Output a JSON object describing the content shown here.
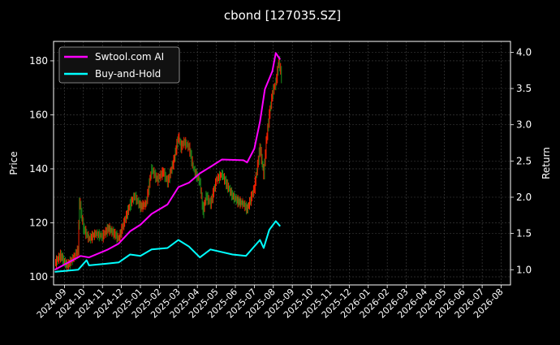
{
  "chart_data": {
    "type": "line",
    "title": "cbond [127035.SZ]",
    "ylabel_left": "Price",
    "ylabel_right": "Return",
    "xlim": [
      "2024-08-14",
      "2026-08-16"
    ],
    "ylim_left": [
      97,
      187.2
    ],
    "ylim_right": [
      0.79,
      4.15
    ],
    "grid": true,
    "legend_position": "top-left",
    "x_tick_labels": [
      "2024-09",
      "2024-10",
      "2024-11",
      "2024-12",
      "2025-01",
      "2025-02",
      "2025-03",
      "2025-04",
      "2025-05",
      "2025-06",
      "2025-07",
      "2025-08",
      "2025-09",
      "2025-10",
      "2025-11",
      "2025-12",
      "2026-01",
      "2026-02",
      "2026-03",
      "2026-04",
      "2026-05",
      "2026-06",
      "2026-07",
      "2026-08"
    ],
    "y_left_ticks": [
      100,
      120,
      140,
      160,
      180
    ],
    "y_right_ticks": [
      "1.0",
      "1.5",
      "2.0",
      "2.5",
      "3.0",
      "3.5",
      "4.0"
    ],
    "colors": {
      "up": "#ff2200",
      "down": "#1a8a1a",
      "strategy": "#ff00ff",
      "buy_hold": "#00ffff",
      "grid": "#555555"
    },
    "price": {
      "dates": [
        "2024-08-16",
        "2024-08-25",
        "2024-09-05",
        "2024-09-15",
        "2024-09-23",
        "2024-09-25",
        "2024-10-01",
        "2024-10-10",
        "2024-10-20",
        "2024-11-01",
        "2024-11-10",
        "2024-11-20",
        "2024-11-27",
        "2024-12-05",
        "2024-12-15",
        "2024-12-22",
        "2025-01-01",
        "2025-01-10",
        "2025-01-19",
        "2025-01-28",
        "2025-02-07",
        "2025-02-14",
        "2025-02-24",
        "2025-03-01",
        "2025-03-05",
        "2025-03-10",
        "2025-03-18",
        "2025-03-25",
        "2025-04-05",
        "2025-04-10",
        "2025-04-15",
        "2025-04-22",
        "2025-05-01",
        "2025-05-10",
        "2025-05-18",
        "2025-05-27",
        "2025-06-05",
        "2025-06-14",
        "2025-06-20",
        "2025-07-01",
        "2025-07-10",
        "2025-07-16",
        "2025-07-20",
        "2025-07-25",
        "2025-07-30",
        "2025-08-05",
        "2025-08-10",
        "2025-08-14"
      ],
      "close": [
        105,
        108,
        104,
        107,
        110,
        128,
        118,
        114,
        116,
        115,
        118,
        116,
        114,
        120,
        127,
        130,
        126,
        127,
        140,
        136,
        139,
        135,
        143,
        152,
        148,
        150,
        148,
        140,
        135,
        124,
        130,
        127,
        136,
        138,
        134,
        130,
        128,
        127,
        125,
        133,
        148,
        138,
        150,
        160,
        168,
        172,
        180,
        174
      ]
    },
    "series": [
      {
        "name": "Swtool.com AI",
        "axis": "right",
        "dates": [
          "2024-08-16",
          "2024-09-27",
          "2024-10-10",
          "2024-11-10",
          "2024-11-27",
          "2024-12-15",
          "2025-01-01",
          "2025-01-19",
          "2025-02-14",
          "2025-03-01",
          "2025-03-18",
          "2025-04-05",
          "2025-04-22",
          "2025-05-10",
          "2025-06-14",
          "2025-06-20",
          "2025-07-01",
          "2025-07-10",
          "2025-07-18",
          "2025-07-30",
          "2025-08-05",
          "2025-08-12"
        ],
        "values": [
          1.0,
          1.19,
          1.17,
          1.28,
          1.36,
          1.53,
          1.62,
          1.77,
          1.9,
          2.14,
          2.2,
          2.33,
          2.42,
          2.52,
          2.51,
          2.48,
          2.67,
          3.04,
          3.49,
          3.74,
          3.99,
          3.9
        ]
      },
      {
        "name": "Buy-and-Hold",
        "axis": "right",
        "dates": [
          "2024-08-16",
          "2024-09-23",
          "2024-10-06",
          "2024-10-10",
          "2024-11-27",
          "2024-12-15",
          "2025-01-01",
          "2025-01-19",
          "2025-02-14",
          "2025-03-01",
          "2025-03-18",
          "2025-04-05",
          "2025-04-22",
          "2025-05-27",
          "2025-06-18",
          "2025-07-10",
          "2025-07-16",
          "2025-07-25",
          "2025-08-05",
          "2025-08-12"
        ],
        "values": [
          0.97,
          1.0,
          1.13,
          1.06,
          1.1,
          1.21,
          1.19,
          1.28,
          1.3,
          1.41,
          1.32,
          1.17,
          1.28,
          1.21,
          1.19,
          1.41,
          1.3,
          1.55,
          1.67,
          1.6
        ]
      }
    ]
  }
}
